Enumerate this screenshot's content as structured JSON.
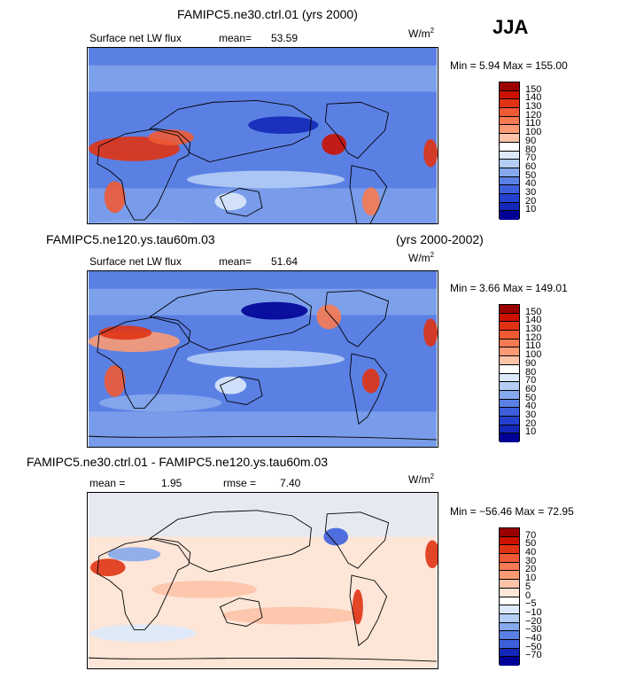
{
  "season": "JJA",
  "units": {
    "base": "W/m",
    "exp": "2"
  },
  "panels": [
    {
      "title": "FAMIPC5.ne30.ctrl.01 (yrs 2000)",
      "title_right": "",
      "stat1_label": "Surface net LW flux",
      "stat1_value": "",
      "stat2_label": "mean=",
      "stat2_value": "53.59",
      "min_text": "Min =   5.94 Max = 155.00",
      "levels": [
        "150",
        "140",
        "130",
        "120",
        "110",
        "100",
        "90",
        "80",
        "70",
        "60",
        "50",
        "40",
        "30",
        "20",
        "10"
      ],
      "colors": [
        "#9a0000",
        "#cc1100",
        "#e03314",
        "#ef5a34",
        "#f77a52",
        "#fb9a74",
        "#fdc3a8",
        "#ffffff",
        "#dce9fb",
        "#b4cdf5",
        "#86a8ec",
        "#5b80e4",
        "#3d5fdb",
        "#2540cf",
        "#1328b8",
        "#000096"
      ]
    },
    {
      "title": "FAMIPC5.ne120.ys.tau60m.03",
      "title_right": "(yrs 2000-2002)",
      "stat1_label": "Surface net LW flux",
      "stat1_value": "",
      "stat2_label": "mean=",
      "stat2_value": "51.64",
      "min_text": "Min =   3.66 Max = 149.01",
      "levels": [
        "150",
        "140",
        "130",
        "120",
        "110",
        "100",
        "90",
        "80",
        "70",
        "60",
        "50",
        "40",
        "30",
        "20",
        "10"
      ],
      "colors": [
        "#9a0000",
        "#cc1100",
        "#e03314",
        "#ef5a34",
        "#f77a52",
        "#fb9a74",
        "#fdc3a8",
        "#ffffff",
        "#dce9fb",
        "#b4cdf5",
        "#86a8ec",
        "#5b80e4",
        "#3d5fdb",
        "#2540cf",
        "#1328b8",
        "#000096"
      ]
    },
    {
      "title": "FAMIPC5.ne30.ctrl.01 - FAMIPC5.ne120.ys.tau60m.03",
      "title_right": "",
      "stat1_label": "mean =",
      "stat1_value": "1.95",
      "stat2_label": "rmse =",
      "stat2_value": "7.40",
      "min_text": "Min = −56.46 Max =  72.95",
      "levels": [
        "70",
        "50",
        "40",
        "30",
        "20",
        "10",
        "5",
        "0",
        "−5",
        "−10",
        "−20",
        "−30",
        "−40",
        "−50",
        "−70"
      ],
      "colors": [
        "#9a0000",
        "#cc1100",
        "#e03314",
        "#ef5a34",
        "#f77a52",
        "#fb9a74",
        "#fdc3a8",
        "#fde6d8",
        "#ffffff",
        "#dce9fb",
        "#b4cdf5",
        "#86a8ec",
        "#5b80e4",
        "#3d5fdb",
        "#1328b8",
        "#000096"
      ]
    }
  ]
}
